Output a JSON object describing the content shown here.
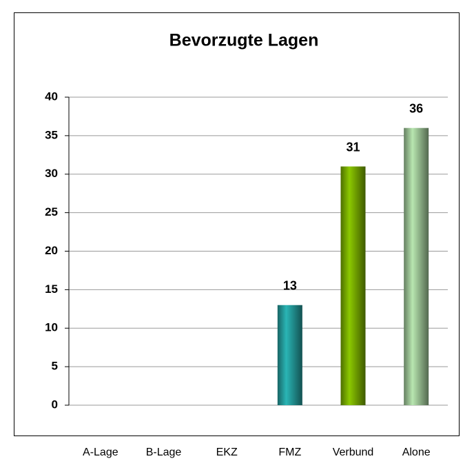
{
  "chart_data": {
    "type": "bar",
    "title": "Bevorzugte Lagen",
    "categories": [
      "A-Lage",
      "B-Lage",
      "EKZ",
      "FMZ",
      "Verbund",
      "Alone"
    ],
    "values": [
      null,
      null,
      null,
      13,
      31,
      36
    ],
    "colors": [
      "#2ab5b5",
      "#2ab5b5",
      "#2ab5b5",
      "#2ab5b5",
      "#8cc800",
      "#b8e6b0"
    ],
    "ylim": [
      0,
      40
    ],
    "yticks": [
      0,
      5,
      10,
      15,
      20,
      25,
      30,
      35,
      40
    ],
    "grid": true
  }
}
